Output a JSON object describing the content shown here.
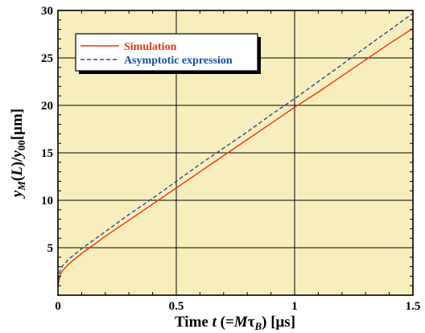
{
  "chart_data": {
    "type": "line",
    "xlim": [
      0,
      1.5
    ],
    "ylim": [
      0,
      30
    ],
    "x_ticks": [
      "0",
      "0.5",
      "1",
      "1.5"
    ],
    "y_ticks": [
      "0",
      "5",
      "10",
      "15",
      "20",
      "25",
      "30"
    ],
    "grid": true,
    "legend_position": "top-left",
    "background_color": "#f8eebb",
    "xlabel": {
      "prefix": "Time ",
      "t": "t",
      "open": " (=",
      "M": "M",
      "tau": "τ",
      "B": "B",
      "close": ") [μs]"
    },
    "ylabel": {
      "y": "y",
      "M": "M",
      "open": "(",
      "L": "L",
      "close": ")/",
      "y2": "y",
      "sub00": "00",
      "unit": "[μm]"
    },
    "series": [
      {
        "name": "Simulation",
        "color": "#ee3311",
        "dash": "solid",
        "x": [
          0,
          0.01,
          0.02,
          0.05,
          0.1,
          0.15,
          0.2,
          0.3,
          0.4,
          0.5,
          0.6,
          0.7,
          0.8,
          0.9,
          1.0,
          1.1,
          1.2,
          1.3,
          1.4,
          1.5
        ],
        "y": [
          1.0,
          2.2,
          2.6,
          3.4,
          4.4,
          5.3,
          6.2,
          7.9,
          9.6,
          11.3,
          13.0,
          14.7,
          16.4,
          18.1,
          19.8,
          21.4,
          23.1,
          24.8,
          26.5,
          28.1
        ]
      },
      {
        "name": "Asymptotic expression",
        "color": "#1a4fa0",
        "dash": "dashed",
        "x": [
          0,
          0.01,
          0.02,
          0.05,
          0.1,
          0.15,
          0.2,
          0.3,
          0.4,
          0.5,
          0.6,
          0.7,
          0.8,
          0.9,
          1.0,
          1.1,
          1.2,
          1.3,
          1.4,
          1.5
        ],
        "y": [
          1.6,
          2.7,
          3.1,
          3.9,
          4.9,
          5.8,
          6.7,
          8.5,
          10.2,
          12.0,
          13.8,
          15.5,
          17.2,
          19.0,
          20.7,
          22.5,
          24.3,
          26.1,
          27.9,
          29.7
        ]
      }
    ]
  }
}
